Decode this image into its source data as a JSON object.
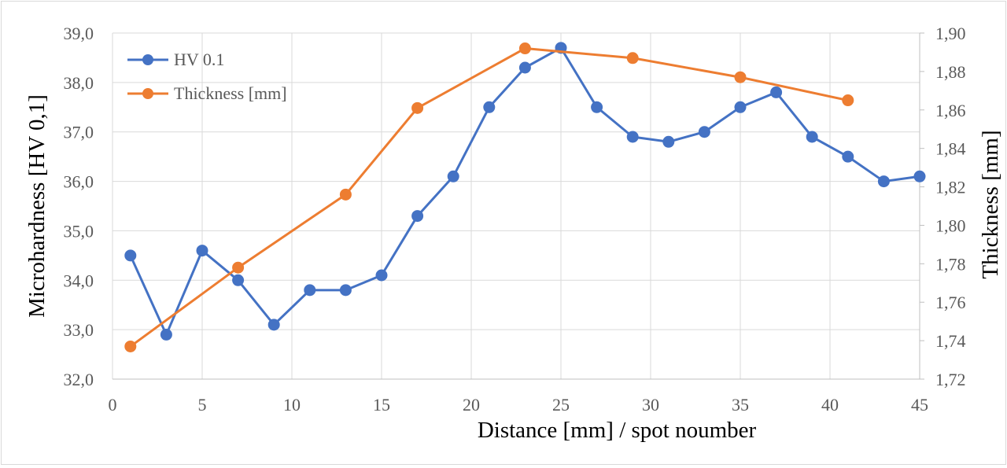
{
  "chart_data": {
    "type": "line",
    "xlabel": "Distance [mm] / spot noumber",
    "ylabel": "Microhardness [HV 0,1]",
    "y2label": "Thickness [mm]",
    "xlim": [
      0,
      45
    ],
    "ylim": [
      32.0,
      39.0
    ],
    "y2lim": [
      1.72,
      1.9
    ],
    "x_ticks": [
      "0",
      "5",
      "10",
      "15",
      "20",
      "25",
      "30",
      "35",
      "40",
      "45"
    ],
    "y_ticks": [
      "32,0",
      "33,0",
      "34,0",
      "35,0",
      "36,0",
      "37,0",
      "38,0",
      "39,0"
    ],
    "y2_ticks": [
      "1,72",
      "1,74",
      "1,76",
      "1,78",
      "1,80",
      "1,82",
      "1,84",
      "1,86",
      "1,88",
      "1,90"
    ],
    "grid": true,
    "legend_position": "top-left",
    "series": [
      {
        "name": "HV 0.1",
        "axis": "left",
        "color": "#4472c4",
        "x": [
          1,
          3,
          5,
          7,
          9,
          11,
          13,
          15,
          17,
          19,
          21,
          23,
          25,
          27,
          29,
          31,
          33,
          35,
          37,
          39,
          41,
          43,
          45
        ],
        "values": [
          34.5,
          32.9,
          34.6,
          34.0,
          33.1,
          33.8,
          33.8,
          34.1,
          35.3,
          36.1,
          37.5,
          38.3,
          38.7,
          37.5,
          36.9,
          36.8,
          37.0,
          37.5,
          37.8,
          36.9,
          36.5,
          36.0,
          36.1
        ]
      },
      {
        "name": "Thickness [mm]",
        "axis": "right",
        "color": "#ed7d31",
        "x": [
          1,
          7,
          13,
          17,
          23,
          29,
          35,
          41
        ],
        "values": [
          1.737,
          1.778,
          1.816,
          1.861,
          1.892,
          1.887,
          1.877,
          1.865
        ]
      }
    ]
  }
}
